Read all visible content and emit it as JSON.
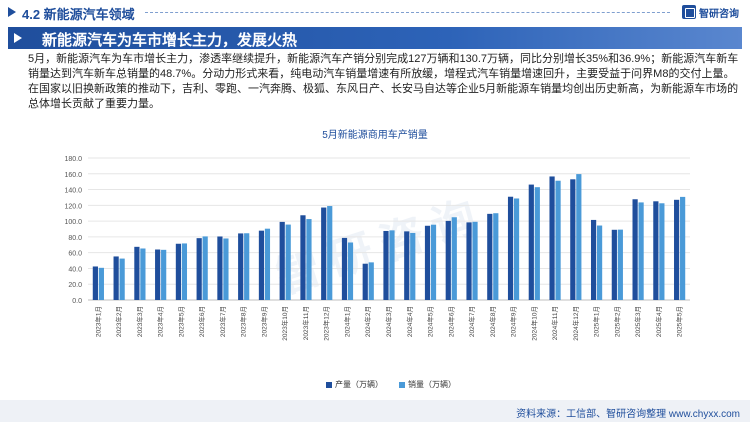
{
  "header": {
    "section_title": "4.2 新能源汽车领域",
    "logo_text": "智研咨询",
    "logo_icon": "zhiyan-logo-icon"
  },
  "banner": {
    "title": "新能源汽车为车市增长主力，发展火热"
  },
  "paragraph": "5月，新能源汽车为车市增长主力，渗透率继续提升，新能源汽车产销分别完成127万辆和130.7万辆，同比分别增长35%和36.9%；新能源汽车新车销量达到汽车新车总销量的48.7%。分动力形式来看，纯电动汽车销量增速有所放缓，增程式汽车销量增速回升，主要受益于问界M8的交付上量。在国家以旧换新政策的推动下，吉利、零跑、一汽奔腾、极狐、东风日产、长安马自达等企业5月新能源车销量均创出历史新高，为新能源车市场的总体增长贡献了重要力量。",
  "watermark": "智研咨询",
  "colors": {
    "brand": "#1f4e9c",
    "production": "#1f4e9c",
    "sales": "#4a9ad8"
  },
  "chart_data": {
    "type": "bar",
    "title": "5月新能源商用车产销量",
    "categories": [
      "2023年1月",
      "2023年2月",
      "2023年3月",
      "2023年4月",
      "2023年5月",
      "2023年6月",
      "2023年7月",
      "2023年8月",
      "2023年9月",
      "2023年10月",
      "2023年11月",
      "2023年12月",
      "2024年1月",
      "2024年2月",
      "2024年3月",
      "2024年4月",
      "2024年5月",
      "2024年6月",
      "2024年7月",
      "2024年8月",
      "2024年9月",
      "2024年10月",
      "2024年11月",
      "2024年12月",
      "2025年1月",
      "2025年2月",
      "2025年3月",
      "2025年4月",
      "2025年5月"
    ],
    "series": [
      {
        "name": "产量（万辆）",
        "values": [
          42.5,
          55.2,
          67.4,
          64.0,
          71.3,
          78.4,
          80.5,
          84.4,
          87.9,
          99.0,
          107.4,
          117.2,
          78.7,
          46.0,
          87.5,
          87.0,
          94.1,
          100.3,
          98.4,
          109.2,
          130.9,
          146.3,
          156.6,
          153.0,
          101.5,
          89.0,
          127.7,
          125.1,
          127.0
        ]
      },
      {
        "name": "销量（万辆）",
        "values": [
          40.8,
          52.5,
          65.3,
          63.6,
          71.7,
          80.6,
          78.0,
          84.6,
          90.4,
          95.6,
          102.6,
          119.1,
          72.9,
          47.7,
          88.3,
          85.0,
          95.5,
          104.9,
          99.1,
          110.0,
          128.7,
          143.0,
          151.2,
          159.6,
          94.4,
          89.2,
          123.7,
          122.6,
          130.7
        ]
      }
    ],
    "yticks": [
      "0.0",
      "20.0",
      "40.0",
      "60.0",
      "80.0",
      "100.0",
      "120.0",
      "140.0",
      "160.0",
      "180.0"
    ],
    "ylim": [
      0,
      180
    ],
    "xlabel": "",
    "ylabel": "",
    "grid": true,
    "legend_position": "bottom-center"
  },
  "source": "资料来源：工信部、智研咨询整理     www.chyxx.com"
}
